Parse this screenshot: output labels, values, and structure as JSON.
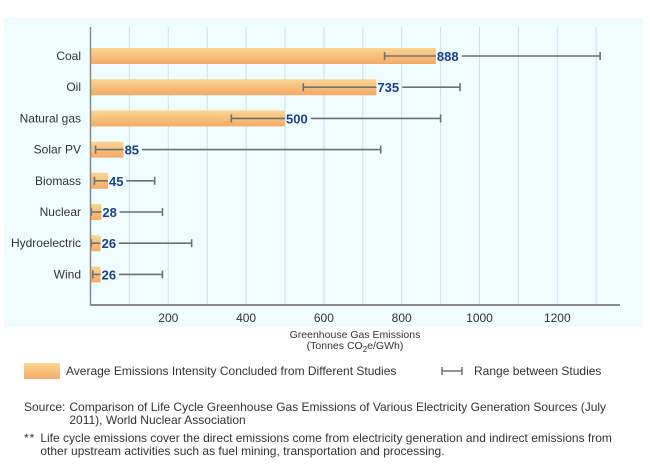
{
  "chart_data": {
    "type": "bar",
    "orientation": "horizontal",
    "title": "",
    "xlabel": "Greenhouse Gas Emissions",
    "xlabel_units_prefix": "(Tonnes CO",
    "xlabel_units_sub": "2",
    "xlabel_units_suffix": "e/GWh)",
    "ylabel": "",
    "xlim": [
      0,
      1360
    ],
    "xticks": [
      200,
      400,
      600,
      800,
      1000,
      1200
    ],
    "xtick_labels": [
      "200",
      "400",
      "600",
      "800",
      "1000",
      "1200"
    ],
    "grid_step": 100,
    "grid": true,
    "categories": [
      "Coal",
      "Oil",
      "Natural gas",
      "Solar PV",
      "Biomass",
      "Nuclear",
      "Hydroelectric",
      "Wind"
    ],
    "series": [
      {
        "name": "Average Emissions Intensity Concluded from Different Studies",
        "values": [
          888,
          735,
          500,
          85,
          45,
          28,
          26,
          26
        ]
      }
    ],
    "ranges": [
      {
        "category": "Coal",
        "low": 756,
        "high": 1310
      },
      {
        "category": "Oil",
        "low": 547,
        "high": 950
      },
      {
        "category": "Natural gas",
        "low": 362,
        "high": 900
      },
      {
        "category": "Solar PV",
        "low": 13,
        "high": 746
      },
      {
        "category": "Biomass",
        "low": 10,
        "high": 165
      },
      {
        "category": "Nuclear",
        "low": 2,
        "high": 185
      },
      {
        "category": "Hydroelectric",
        "low": 2,
        "high": 260
      },
      {
        "category": "Wind",
        "low": 6,
        "high": 185
      }
    ],
    "legend": [
      {
        "label": "Average Emissions Intensity Concluded from Different Studies",
        "kind": "bar"
      },
      {
        "label": "Range between Studies",
        "kind": "error-range"
      }
    ],
    "legend_position": "bottom"
  },
  "colors": {
    "bar_top": "#fbd693",
    "bar_bottom": "#f5aa66",
    "value_label": "#1d3f8a",
    "panel_bg": "#effdfe",
    "grid": "#cfe0e0",
    "axis": "#8a8a8a",
    "whisker": "#707070"
  },
  "source": {
    "prefix": "Source:",
    "text": "Comparison of Life Cycle Greenhouse Gas Emissions of Various Electricity Generation Sources (July 2011), World Nuclear Association"
  },
  "note": {
    "prefix": "**",
    "text": "Life cycle emissions cover the direct emissions come from electricity generation and indirect emissions from other upstream activities such as fuel mining, transportation and processing."
  }
}
